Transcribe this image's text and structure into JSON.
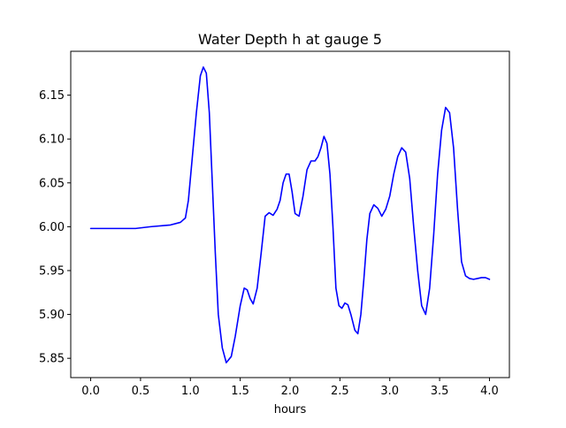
{
  "chart_data": {
    "type": "line",
    "title": "Water Depth h at gauge 5",
    "xlabel": "hours",
    "ylabel": "",
    "xlim": [
      -0.2,
      4.2
    ],
    "ylim": [
      5.828,
      6.2
    ],
    "x_ticks": [
      0.0,
      0.5,
      1.0,
      1.5,
      2.0,
      2.5,
      3.0,
      3.5,
      4.0
    ],
    "x_tick_labels": [
      "0.0",
      "0.5",
      "1.0",
      "1.5",
      "2.0",
      "2.5",
      "3.0",
      "3.5",
      "4.0"
    ],
    "y_ticks": [
      5.85,
      5.9,
      5.95,
      6.0,
      6.05,
      6.1,
      6.15
    ],
    "y_tick_labels": [
      "5.85",
      "5.90",
      "5.95",
      "6.00",
      "6.05",
      "6.10",
      "6.15"
    ],
    "grid": false,
    "line_color": "#0000ff",
    "series": [
      {
        "x": [
          0.0,
          0.45,
          0.6,
          0.8,
          0.9,
          0.95,
          0.98,
          1.02,
          1.06,
          1.1,
          1.13,
          1.16,
          1.19,
          1.22,
          1.25,
          1.28,
          1.32,
          1.36,
          1.41,
          1.45,
          1.5,
          1.54,
          1.57,
          1.6,
          1.63,
          1.67,
          1.71,
          1.75,
          1.79,
          1.83,
          1.87,
          1.9,
          1.93,
          1.96,
          1.99,
          2.02,
          2.05,
          2.09,
          2.13,
          2.17,
          2.21,
          2.25,
          2.28,
          2.31,
          2.34,
          2.37,
          2.4,
          2.43,
          2.46,
          2.49,
          2.52,
          2.55,
          2.58,
          2.61,
          2.65,
          2.68,
          2.71,
          2.74,
          2.77,
          2.8,
          2.84,
          2.88,
          2.92,
          2.96,
          3.0,
          3.04,
          3.08,
          3.12,
          3.16,
          3.2,
          3.24,
          3.28,
          3.32,
          3.36,
          3.4,
          3.44,
          3.48,
          3.52,
          3.56,
          3.6,
          3.64,
          3.68,
          3.72,
          3.76,
          3.8,
          3.84,
          3.88,
          3.92,
          3.96,
          4.0
        ],
        "y": [
          5.998,
          5.998,
          6.0,
          6.002,
          6.005,
          6.01,
          6.03,
          6.08,
          6.13,
          6.172,
          6.182,
          6.175,
          6.13,
          6.05,
          5.97,
          5.9,
          5.862,
          5.845,
          5.852,
          5.875,
          5.91,
          5.93,
          5.928,
          5.918,
          5.912,
          5.93,
          5.97,
          6.012,
          6.016,
          6.013,
          6.02,
          6.03,
          6.05,
          6.06,
          6.06,
          6.04,
          6.015,
          6.012,
          6.035,
          6.065,
          6.075,
          6.075,
          6.08,
          6.09,
          6.103,
          6.095,
          6.06,
          6.0,
          5.93,
          5.91,
          5.907,
          5.913,
          5.911,
          5.9,
          5.882,
          5.878,
          5.9,
          5.94,
          5.985,
          6.015,
          6.025,
          6.021,
          6.012,
          6.02,
          6.035,
          6.06,
          6.08,
          6.09,
          6.085,
          6.055,
          6.0,
          5.95,
          5.91,
          5.9,
          5.93,
          5.99,
          6.06,
          6.11,
          6.136,
          6.13,
          6.09,
          6.02,
          5.96,
          5.944,
          5.941,
          5.94,
          5.941,
          5.942,
          5.942,
          5.94
        ]
      }
    ]
  }
}
